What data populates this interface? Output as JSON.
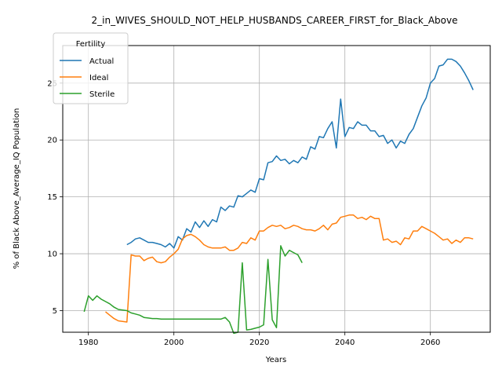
{
  "chart_data": {
    "type": "line",
    "title": "2_in_WIVES_SHOULD_NOT_HELP_HUSBANDS_CAREER_FIRST_for_Black_Above",
    "xlabel": "Years",
    "ylabel": "% of Black Above_Average_IQ Population",
    "xlim": [
      1974,
      2074
    ],
    "ylim": [
      3.1,
      28.3
    ],
    "xticks": [
      1980,
      2000,
      2020,
      2040,
      2060
    ],
    "yticks": [
      5,
      10,
      15,
      20,
      25
    ],
    "grid": true,
    "legend": {
      "title": "Fertility",
      "position": "upper-left"
    },
    "series": [
      {
        "name": "Actual",
        "color": "#1f77b4",
        "x": [
          1989,
          1990,
          1991,
          1992,
          1993,
          1994,
          1995,
          1996,
          1997,
          1998,
          1999,
          2000,
          2001,
          2002,
          2003,
          2004,
          2005,
          2006,
          2007,
          2008,
          2009,
          2010,
          2011,
          2012,
          2013,
          2014,
          2015,
          2016,
          2017,
          2018,
          2019,
          2020,
          2021,
          2022,
          2023,
          2024,
          2025,
          2026,
          2027,
          2028,
          2029,
          2030,
          2031,
          2032,
          2033,
          2034,
          2035,
          2036,
          2037,
          2038,
          2039,
          2040,
          2041,
          2042,
          2043,
          2044,
          2045,
          2046,
          2047,
          2048,
          2049,
          2050,
          2051,
          2052,
          2053,
          2054,
          2055,
          2056,
          2057,
          2058,
          2059,
          2060,
          2061,
          2062,
          2063,
          2064,
          2065,
          2066,
          2067,
          2068,
          2069,
          2070
        ],
        "y": [
          10.8,
          11.0,
          11.3,
          11.4,
          11.2,
          11.0,
          11.0,
          10.9,
          10.8,
          10.6,
          10.9,
          10.5,
          11.5,
          11.2,
          12.2,
          11.9,
          12.8,
          12.3,
          12.9,
          12.4,
          13.0,
          12.8,
          14.1,
          13.8,
          14.2,
          14.1,
          15.1,
          15.0,
          15.3,
          15.6,
          15.4,
          16.6,
          16.5,
          18.0,
          18.1,
          18.6,
          18.2,
          18.3,
          17.9,
          18.2,
          18.0,
          18.5,
          18.3,
          19.4,
          19.2,
          20.3,
          20.2,
          21.0,
          21.6,
          19.3,
          23.6,
          20.3,
          21.1,
          21.0,
          21.6,
          21.3,
          21.3,
          20.8,
          20.8,
          20.3,
          20.4,
          19.7,
          20.0,
          19.3,
          19.9,
          19.7,
          20.5,
          21.0,
          22.0,
          23.0,
          23.7,
          25.0,
          25.4,
          26.5,
          26.6,
          27.1,
          27.1,
          26.9,
          26.5,
          25.9,
          25.2,
          24.4
        ]
      },
      {
        "name": "Ideal",
        "color": "#ff7f0e",
        "x": [
          1984,
          1985,
          1986,
          1987,
          1988,
          1989,
          1990,
          1991,
          1992,
          1993,
          1994,
          1995,
          1996,
          1997,
          1998,
          1999,
          2000,
          2001,
          2002,
          2003,
          2004,
          2005,
          2006,
          2007,
          2008,
          2009,
          2010,
          2011,
          2012,
          2013,
          2014,
          2015,
          2016,
          2017,
          2018,
          2019,
          2020,
          2021,
          2022,
          2023,
          2024,
          2025,
          2026,
          2027,
          2028,
          2029,
          2030,
          2031,
          2032,
          2033,
          2034,
          2035,
          2036,
          2037,
          2038,
          2039,
          2040,
          2041,
          2042,
          2043,
          2044,
          2045,
          2046,
          2047,
          2048,
          2049,
          2050,
          2051,
          2052,
          2053,
          2054,
          2055,
          2056,
          2057,
          2058,
          2059,
          2060,
          2061,
          2062,
          2063,
          2064,
          2065,
          2066,
          2067,
          2068,
          2069,
          2070
        ],
        "y": [
          4.9,
          4.6,
          4.3,
          4.1,
          4.05,
          4.0,
          9.9,
          9.8,
          9.8,
          9.4,
          9.6,
          9.7,
          9.3,
          9.2,
          9.3,
          9.7,
          10.0,
          10.4,
          11.3,
          11.6,
          11.7,
          11.5,
          11.2,
          10.8,
          10.6,
          10.5,
          10.5,
          10.5,
          10.6,
          10.3,
          10.3,
          10.5,
          11.0,
          10.9,
          11.4,
          11.2,
          12.0,
          12.0,
          12.3,
          12.5,
          12.4,
          12.5,
          12.2,
          12.3,
          12.5,
          12.4,
          12.2,
          12.1,
          12.1,
          12.0,
          12.2,
          12.5,
          12.1,
          12.6,
          12.7,
          13.2,
          13.3,
          13.4,
          13.4,
          13.1,
          13.2,
          13.0,
          13.3,
          13.1,
          13.1,
          11.2,
          11.3,
          11.0,
          11.1,
          10.8,
          11.4,
          11.3,
          12.0,
          12.0,
          12.4,
          12.2,
          12.0,
          11.8,
          11.5,
          11.2,
          11.3,
          10.9,
          11.2,
          11.0,
          11.4,
          11.4,
          11.3
        ]
      },
      {
        "name": "Sterile",
        "color": "#2ca02c",
        "x": [
          1979,
          1980,
          1981,
          1982,
          1983,
          1984,
          1985,
          1986,
          1987,
          1988,
          1989,
          1990,
          1991,
          1992,
          1993,
          1994,
          1995,
          1996,
          1997,
          1998,
          1999,
          2000,
          2001,
          2002,
          2003,
          2004,
          2005,
          2006,
          2007,
          2008,
          2009,
          2010,
          2011,
          2012,
          2013,
          2014,
          2015,
          2016,
          2017,
          2018,
          2019,
          2020,
          2021,
          2022,
          2023,
          2024,
          2025,
          2026,
          2027,
          2028,
          2029,
          2030
        ],
        "y": [
          4.9,
          6.3,
          5.9,
          6.3,
          6.0,
          5.8,
          5.6,
          5.3,
          5.1,
          5.05,
          5.0,
          4.8,
          4.7,
          4.6,
          4.4,
          4.35,
          4.3,
          4.3,
          4.25,
          4.25,
          4.25,
          4.25,
          4.25,
          4.25,
          4.25,
          4.25,
          4.25,
          4.25,
          4.25,
          4.25,
          4.25,
          4.25,
          4.25,
          4.4,
          4.0,
          3.0,
          3.1,
          9.2,
          3.3,
          3.35,
          3.45,
          3.55,
          3.75,
          9.5,
          4.2,
          3.5,
          10.7,
          9.8,
          10.3,
          10.1,
          9.9,
          9.2
        ]
      }
    ]
  }
}
